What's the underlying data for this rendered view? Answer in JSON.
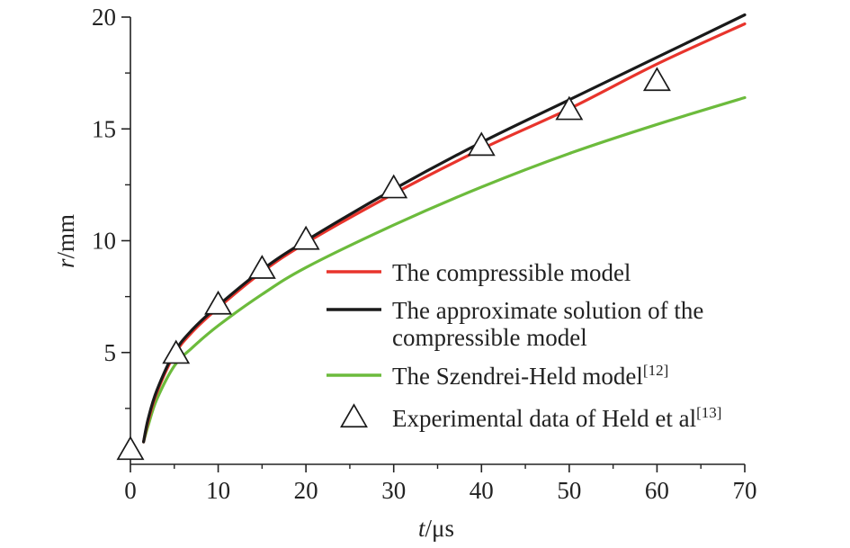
{
  "chart_data": {
    "type": "line",
    "xlabel": {
      "var": "t",
      "unit": "/μs"
    },
    "ylabel": {
      "var": "r",
      "unit": "/mm"
    },
    "xlim": [
      0,
      70
    ],
    "ylim": [
      0,
      20
    ],
    "xticks": [
      "0",
      "10",
      "20",
      "30",
      "40",
      "50",
      "60",
      "70"
    ],
    "yticks": [
      "5",
      "10",
      "15",
      "20"
    ],
    "grid": false,
    "legend_position": "bottom-right",
    "series": [
      {
        "name": "The compressible model",
        "legend_lines": [
          "The compressible model"
        ],
        "color": "#e8342c",
        "x": [
          1.5,
          2,
          3,
          5,
          7,
          10,
          15,
          20,
          30,
          40,
          50,
          60,
          70
        ],
        "y": [
          1.0,
          1.9,
          3.2,
          4.9,
          5.9,
          7.0,
          8.6,
          9.9,
          12.1,
          14.1,
          15.9,
          17.9,
          19.7
        ]
      },
      {
        "name": "The approximate solution of the compressible model",
        "legend_lines": [
          "The approximate solution of the",
          "compressible model"
        ],
        "color": "#1a1a1a",
        "x": [
          1.5,
          2,
          3,
          5,
          7,
          10,
          15,
          20,
          30,
          40,
          50,
          60,
          70
        ],
        "y": [
          1.0,
          2.0,
          3.3,
          5.0,
          6.0,
          7.1,
          8.7,
          10.0,
          12.3,
          14.4,
          16.3,
          18.2,
          20.1
        ]
      },
      {
        "name": "The Szendrei-Held model[12]",
        "legend_lines": [
          "The Szendrei-Held model"
        ],
        "legend_sup": "[12]",
        "color": "#6cbb3c",
        "x": [
          1.5,
          2,
          3,
          5,
          7,
          10,
          15,
          20,
          30,
          40,
          50,
          60,
          70
        ],
        "y": [
          1.0,
          1.7,
          2.9,
          4.4,
          5.2,
          6.2,
          7.6,
          8.8,
          10.7,
          12.4,
          13.9,
          15.2,
          16.4
        ]
      },
      {
        "name": "Experimental data of Held et al[13]",
        "legend_lines": [
          "Experimental data of Held et al"
        ],
        "legend_sup": "[13]",
        "marker": "triangle",
        "color": "#1a1a1a",
        "x": [
          0,
          5.2,
          10,
          15,
          20,
          30,
          40,
          50,
          60
        ],
        "y": [
          0.6,
          4.9,
          7.1,
          8.7,
          10.0,
          12.3,
          14.2,
          15.8,
          17.1
        ]
      }
    ]
  }
}
